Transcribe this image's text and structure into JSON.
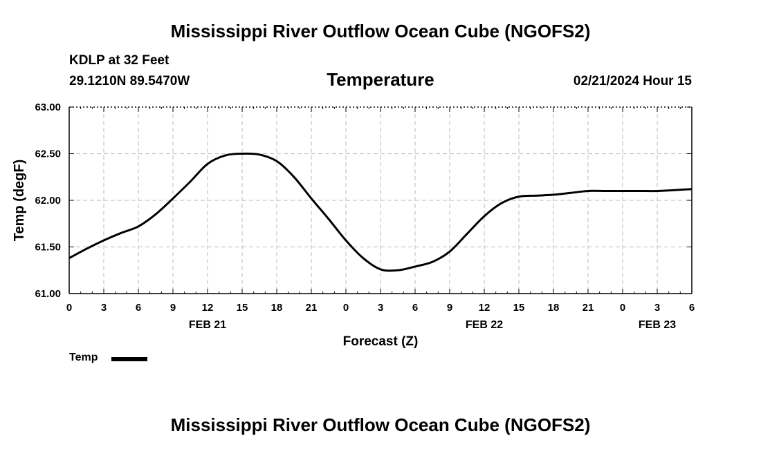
{
  "page": {
    "title_top": "Mississippi River Outflow Ocean Cube (NGOFS2)",
    "title_bottom": "Mississippi River Outflow Ocean Cube (NGOFS2)",
    "station_line": "KDLP at 32 Feet",
    "coords_line": "29.1210N  89.5470W",
    "datetime_line": "02/21/2024 Hour 15",
    "legend_label": "Temp"
  },
  "chart_data": {
    "type": "line",
    "title": "Temperature",
    "xlabel": "Forecast (Z)",
    "ylabel": "Temp (degF)",
    "xlim": [
      0,
      54
    ],
    "ylim": [
      61.0,
      63.0
    ],
    "y_ticks": [
      "61.00",
      "61.50",
      "62.00",
      "62.50",
      "63.00"
    ],
    "x_ticks": [
      "0",
      "3",
      "6",
      "9",
      "12",
      "15",
      "18",
      "21",
      "0",
      "3",
      "6",
      "9",
      "12",
      "15",
      "18",
      "21",
      "0",
      "3",
      "6"
    ],
    "date_labels": [
      {
        "label": "FEB 21",
        "hour": 12
      },
      {
        "label": "FEB 22",
        "hour": 36
      },
      {
        "label": "FEB 23",
        "hour": 51
      }
    ],
    "series": [
      {
        "name": "Temp",
        "color": "#000000",
        "x": [
          0,
          1.5,
          3,
          4.5,
          6,
          7.5,
          9,
          10.5,
          12,
          13.5,
          15,
          16.5,
          18,
          19.5,
          21,
          22.5,
          24,
          25.5,
          27,
          28.5,
          30,
          31.5,
          33,
          34.5,
          36,
          37.5,
          39,
          40.5,
          42,
          43.5,
          45,
          46.5,
          48,
          49.5,
          51,
          52.5,
          54
        ],
        "values": [
          61.38,
          61.48,
          61.57,
          61.65,
          61.72,
          61.85,
          62.02,
          62.2,
          62.39,
          62.48,
          62.5,
          62.49,
          62.42,
          62.25,
          62.02,
          61.8,
          61.57,
          61.38,
          61.26,
          61.25,
          61.29,
          61.34,
          61.45,
          61.64,
          61.83,
          61.97,
          62.04,
          62.05,
          62.06,
          62.08,
          62.1,
          62.1,
          62.1,
          62.1,
          62.1,
          62.11,
          62.12
        ]
      }
    ],
    "grid": true
  }
}
